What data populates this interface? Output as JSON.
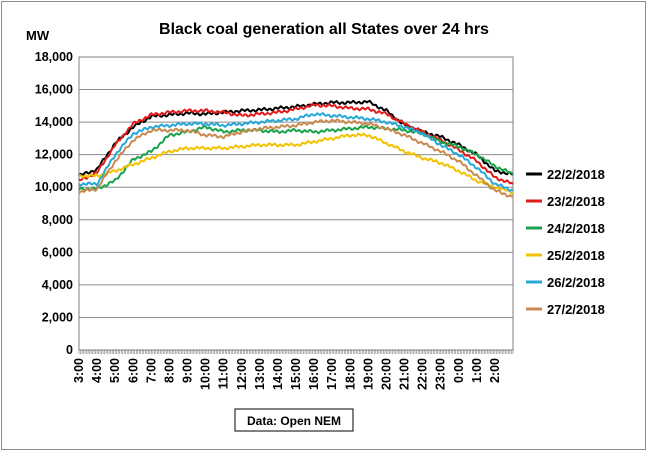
{
  "chart_data": {
    "type": "line",
    "title": "Black coal generation all States over 24 hrs",
    "ylabel": "MW",
    "xlabel": "",
    "ylim": [
      0,
      18000
    ],
    "yticks": [
      "0",
      "2,000",
      "4,000",
      "6,000",
      "8,000",
      "10,000",
      "12,000",
      "14,000",
      "16,000",
      "18,000"
    ],
    "ytick_values": [
      0,
      2000,
      4000,
      6000,
      8000,
      10000,
      12000,
      14000,
      16000,
      18000
    ],
    "x": [
      "3:00",
      "4:00",
      "5:00",
      "6:00",
      "7:00",
      "8:00",
      "9:00",
      "10:00",
      "11:00",
      "12:00",
      "13:00",
      "14:00",
      "15:00",
      "16:00",
      "17:00",
      "18:00",
      "19:00",
      "20:00",
      "21:00",
      "22:00",
      "23:00",
      "0:00",
      "1:00",
      "2:00",
      "3:00"
    ],
    "xtick_labels": [
      "3:00",
      "4:00",
      "5:00",
      "6:00",
      "7:00",
      "8:00",
      "9:00",
      "10:00",
      "11:00",
      "12:00",
      "13:00",
      "14:00",
      "15:00",
      "16:00",
      "17:00",
      "18:00",
      "19:00",
      "20:00",
      "21:00",
      "22:00",
      "23:00",
      "0:00",
      "1:00",
      "2:00"
    ],
    "grid": true,
    "legend_position": "right",
    "source_note": "Data: Open NEM",
    "series": [
      {
        "name": "22/2/2018",
        "color": "#000000",
        "values": [
          10700,
          11100,
          12700,
          13700,
          14350,
          14450,
          14550,
          14500,
          14600,
          14700,
          14750,
          14850,
          14950,
          15100,
          15200,
          15200,
          15250,
          14700,
          13800,
          13400,
          13100,
          12600,
          12000,
          11000,
          10800
        ]
      },
      {
        "name": "23/2/2018",
        "color": "#e01b1b",
        "values": [
          10400,
          10900,
          12600,
          13900,
          14450,
          14600,
          14700,
          14700,
          14600,
          14400,
          14500,
          14600,
          14800,
          15050,
          15000,
          14850,
          14800,
          14500,
          13900,
          13400,
          12900,
          12300,
          11600,
          10600,
          10200
        ]
      },
      {
        "name": "24/2/2018",
        "color": "#1aa24a",
        "values": [
          9900,
          9900,
          10400,
          11700,
          12200,
          13200,
          13400,
          13700,
          13400,
          13500,
          13500,
          13400,
          13500,
          13400,
          13500,
          13600,
          13700,
          13600,
          13500,
          13300,
          12800,
          12500,
          12000,
          11300,
          10800
        ]
      },
      {
        "name": "25/2/2018",
        "color": "#f2c200",
        "values": [
          10700,
          10700,
          11000,
          11400,
          11800,
          12200,
          12400,
          12400,
          12400,
          12500,
          12600,
          12600,
          12600,
          12800,
          13000,
          13200,
          13200,
          12700,
          12200,
          11800,
          11500,
          11000,
          10400,
          10000,
          9700
        ]
      },
      {
        "name": "26/2/2018",
        "color": "#28a8d6",
        "values": [
          10200,
          10200,
          12000,
          13300,
          13700,
          13800,
          13900,
          13900,
          13800,
          13900,
          14000,
          14100,
          14200,
          14500,
          14400,
          14300,
          14200,
          14000,
          13700,
          13300,
          12600,
          12000,
          11200,
          10200,
          9800
        ]
      },
      {
        "name": "27/2/2018",
        "color": "#c98a50",
        "values": [
          9700,
          9900,
          11600,
          12900,
          13500,
          13500,
          13500,
          13200,
          13100,
          13400,
          13600,
          13700,
          13800,
          14000,
          14100,
          14000,
          13900,
          13600,
          13200,
          12700,
          12200,
          11600,
          10700,
          9800,
          9400
        ]
      }
    ]
  }
}
